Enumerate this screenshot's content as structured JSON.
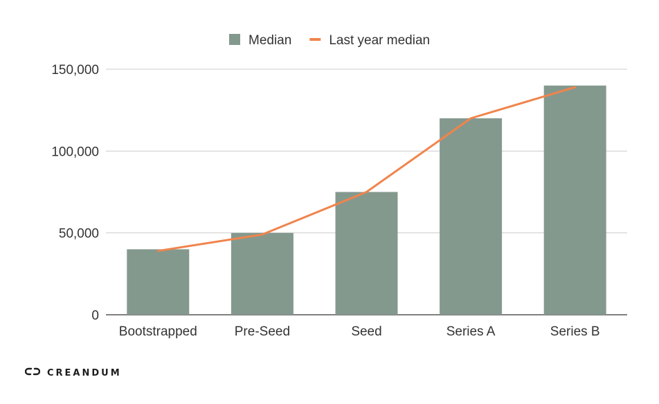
{
  "chart_data": {
    "type": "bar",
    "categories": [
      "Bootstrapped",
      "Pre-Seed",
      "Seed",
      "Series A",
      "Series B"
    ],
    "series": [
      {
        "name": "Median",
        "type": "bar",
        "color": "#84998e",
        "values": [
          40000,
          50000,
          75000,
          120000,
          140000
        ]
      },
      {
        "name": "Last year median",
        "type": "line",
        "color": "#f0844c",
        "values": [
          39000,
          49000,
          75000,
          120000,
          139000
        ]
      }
    ],
    "yticks": [
      "0",
      "50,000",
      "100,000",
      "150,000"
    ],
    "ytick_values": [
      0,
      50000,
      100000,
      150000
    ],
    "ylim": [
      0,
      150000
    ],
    "grid": true,
    "legend_position": "top-center"
  },
  "brand": {
    "name": "CREANDUM",
    "icon": "creandum-logo-icon"
  }
}
